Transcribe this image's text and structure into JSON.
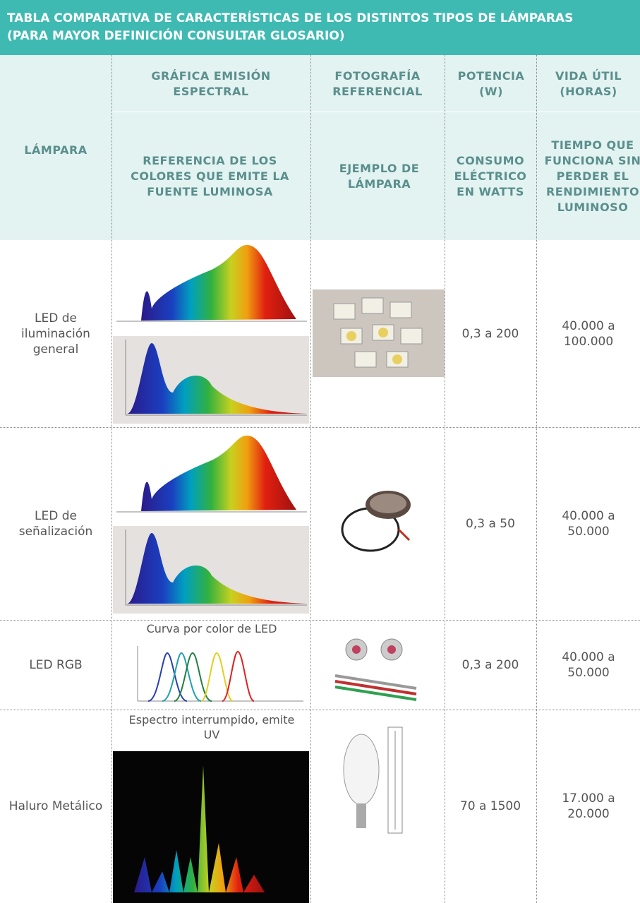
{
  "header": {
    "title_lines": [
      "TABLA COMPARATIVA DE CARACTERÍSTICAS DE LOS DISTINTOS TIPOS DE LÁMPARAS",
      "(PARA MAYOR DEFINICIÓN CONSULTAR GLOSARIO)"
    ]
  },
  "table": {
    "columns": [
      {
        "title": "LÁMPARA"
      },
      {
        "title": "GRÁFICA EMISIÓN ESPECTRAL",
        "subtitle": "REFERENCIA DE LOS COLORES QUE EMITE LA FUENTE LUMINOSA"
      },
      {
        "title": "FOTOGRAFÍA REFERENCIAL",
        "subtitle": "EJEMPLO DE LÁMPARA"
      },
      {
        "title": "POTENCIA (W)",
        "subtitle": "CONSUMO ELÉCTRICO EN WATTS"
      },
      {
        "title": "VIDA ÚTIL (HORAS)",
        "subtitle": "TIEMPO QUE FUNCIONA SIN PERDER EL RENDIMIENTO LUMINOSO"
      }
    ],
    "rows": [
      {
        "lamp": "LED de iluminación general",
        "power": "0,3 a 200",
        "life": "40.000 a 100.000"
      },
      {
        "lamp": "LED de señalización",
        "power": "0,3 a 50",
        "life": "40.000 a 50.000"
      },
      {
        "lamp": "LED RGB",
        "graph_caption": "Curva por color de LED",
        "power": "0,3 a 200",
        "life": "40.000 a 50.000"
      },
      {
        "lamp": "Haluro Metálico",
        "graph_caption": "Espectro interrumpido, emite UV",
        "power": "70 a 1500",
        "life": "17.000 a 20.000"
      }
    ]
  }
}
